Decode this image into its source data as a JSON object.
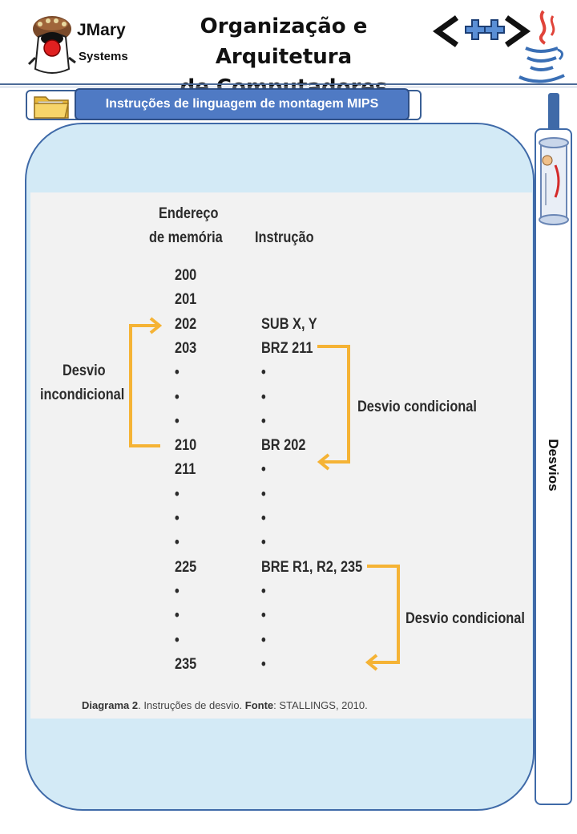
{
  "brand": {
    "name": "JMary",
    "sub": "Systems"
  },
  "header": {
    "title_line1": "Organização e Arquitetura",
    "title_line2": "de Computadores"
  },
  "section": {
    "label": "Instruções de linguagem de montagem MIPS"
  },
  "side": {
    "label": "Desvios"
  },
  "diagram": {
    "col_address_line1": "Endereço",
    "col_address_line2": "de memória",
    "col_instruction": "Instrução",
    "rows": [
      {
        "addr": "200",
        "instr": ""
      },
      {
        "addr": "201",
        "instr": ""
      },
      {
        "addr": "202",
        "instr": "SUB X, Y"
      },
      {
        "addr": "203",
        "instr": "BRZ 211"
      },
      {
        "addr": "•",
        "instr": "•"
      },
      {
        "addr": "•",
        "instr": "•"
      },
      {
        "addr": "•",
        "instr": "•"
      },
      {
        "addr": "210",
        "instr": "BR 202"
      },
      {
        "addr": "211",
        "instr": "•"
      },
      {
        "addr": "•",
        "instr": "•"
      },
      {
        "addr": "•",
        "instr": "•"
      },
      {
        "addr": "•",
        "instr": "•"
      },
      {
        "addr": "225",
        "instr": "BRE R1, R2, 235"
      },
      {
        "addr": "•",
        "instr": "•"
      },
      {
        "addr": "•",
        "instr": "•"
      },
      {
        "addr": "•",
        "instr": "•"
      },
      {
        "addr": "235",
        "instr": "•"
      }
    ],
    "label_unconditional_line1": "Desvio",
    "label_unconditional_line2": "incondicional",
    "label_conditional_1": "Desvio condicional",
    "label_conditional_2": "Desvio condicional",
    "arrow_color": "#f5b335",
    "caption_bold": "Diagrama 2",
    "caption_text": ". Instruções de desvio. ",
    "caption_source_bold": "Fonte",
    "caption_source_text": ": STALLINGS, 2010."
  },
  "colors": {
    "panel_bg": "#d3eaf6",
    "panel_border": "#3f6aa8",
    "section_pill": "#4f7ac4"
  },
  "icons": {
    "logo": "jmary-mascot-icon",
    "folder": "folder-icon",
    "cpp": "cpp-logo-icon",
    "java": "java-logo-icon",
    "scroll": "scroll-icon"
  }
}
